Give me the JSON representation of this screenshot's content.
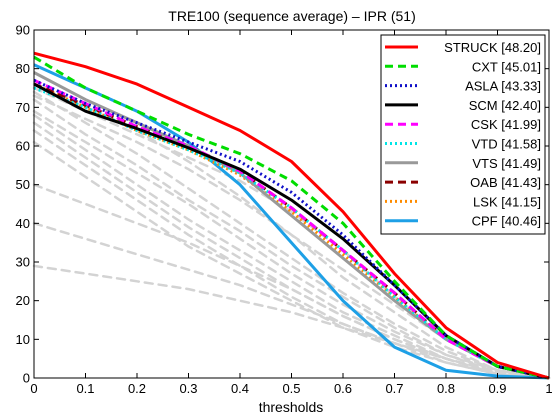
{
  "chart_data": {
    "type": "line",
    "title": "TRE100 (sequence average) – IPR (51)",
    "xlabel": "thresholds",
    "ylabel": "",
    "xlim": [
      0,
      1
    ],
    "ylim": [
      0,
      90
    ],
    "xticks": [
      "0",
      "0.1",
      "0.2",
      "0.3",
      "0.4",
      "0.5",
      "0.6",
      "0.7",
      "0.8",
      "0.9",
      "1"
    ],
    "yticks": [
      "0",
      "10",
      "20",
      "30",
      "40",
      "50",
      "60",
      "70",
      "80",
      "90"
    ],
    "legend_position": "top-right",
    "series": [
      {
        "name": "STRUCK",
        "score": "[48.20]",
        "color": "#ff0000",
        "style": "solid",
        "x": [
          0,
          0.1,
          0.2,
          0.3,
          0.4,
          0.5,
          0.6,
          0.7,
          0.8,
          0.9,
          1.0
        ],
        "y": [
          84,
          80.5,
          76,
          70,
          64,
          56,
          43,
          27,
          13,
          4,
          0
        ]
      },
      {
        "name": "CXT",
        "score": "[45.01]",
        "color": "#00dd00",
        "style": "dashed",
        "x": [
          0,
          0.1,
          0.2,
          0.3,
          0.4,
          0.5,
          0.6,
          0.7,
          0.8,
          0.9,
          1.0
        ],
        "y": [
          83,
          75,
          69,
          63,
          58,
          51,
          40,
          25,
          11,
          3,
          0
        ]
      },
      {
        "name": "ASLA",
        "score": "[43.33]",
        "color": "#1010c8",
        "style": "dotted",
        "x": [
          0,
          0.1,
          0.2,
          0.3,
          0.4,
          0.5,
          0.6,
          0.7,
          0.8,
          0.9,
          1.0
        ],
        "y": [
          77,
          71,
          66,
          61,
          56,
          48,
          37,
          24,
          11,
          3,
          0
        ]
      },
      {
        "name": "SCM",
        "score": "[42.40]",
        "color": "#000000",
        "style": "solid",
        "x": [
          0,
          0.1,
          0.2,
          0.3,
          0.4,
          0.5,
          0.6,
          0.7,
          0.8,
          0.9,
          1.0
        ],
        "y": [
          76,
          69,
          64.5,
          59.5,
          54,
          46,
          36,
          24,
          11,
          3,
          0
        ]
      },
      {
        "name": "CSK",
        "score": "[41.99]",
        "color": "#ff00ff",
        "style": "dashed",
        "x": [
          0,
          0.1,
          0.2,
          0.3,
          0.4,
          0.5,
          0.6,
          0.7,
          0.8,
          0.9,
          1.0
        ],
        "y": [
          77,
          71,
          65,
          60,
          53.5,
          44,
          33,
          22,
          10,
          3,
          0
        ]
      },
      {
        "name": "VTD",
        "score": "[41.58]",
        "color": "#00e6e6",
        "style": "dotted",
        "x": [
          0,
          0.1,
          0.2,
          0.3,
          0.4,
          0.5,
          0.6,
          0.7,
          0.8,
          0.9,
          1.0
        ],
        "y": [
          75,
          70,
          64,
          59,
          53,
          44,
          33,
          21,
          10,
          3,
          0
        ]
      },
      {
        "name": "VTS",
        "score": "[41.49]",
        "color": "#999999",
        "style": "solid",
        "x": [
          0,
          0.1,
          0.2,
          0.3,
          0.4,
          0.5,
          0.6,
          0.7,
          0.8,
          0.9,
          1.0
        ],
        "y": [
          79,
          72,
          66,
          60,
          53,
          42,
          31,
          20,
          10,
          3,
          0
        ]
      },
      {
        "name": "OAB",
        "score": "[41.43]",
        "color": "#8b0000",
        "style": "dashed",
        "x": [
          0,
          0.1,
          0.2,
          0.3,
          0.4,
          0.5,
          0.6,
          0.7,
          0.8,
          0.9,
          1.0
        ],
        "y": [
          76,
          70.5,
          65,
          60,
          53.5,
          44,
          33,
          22,
          10,
          3,
          0
        ]
      },
      {
        "name": "LSK",
        "score": "[41.15]",
        "color": "#ff8c00",
        "style": "dotted",
        "x": [
          0,
          0.1,
          0.2,
          0.3,
          0.4,
          0.5,
          0.6,
          0.7,
          0.8,
          0.9,
          1.0
        ],
        "y": [
          76,
          70,
          64,
          59,
          52.5,
          43,
          32,
          21,
          10,
          3,
          0
        ]
      },
      {
        "name": "CPF",
        "score": "[40.46]",
        "color": "#1ea0e6",
        "style": "solid",
        "x": [
          0,
          0.1,
          0.2,
          0.3,
          0.4,
          0.5,
          0.6,
          0.7,
          0.8,
          0.9,
          1.0
        ],
        "y": [
          81,
          75,
          69,
          61,
          50,
          35,
          20,
          8,
          2,
          0.5,
          0
        ]
      }
    ],
    "background_curves": [
      {
        "x": [
          0,
          0.1,
          0.2,
          0.3,
          0.4,
          0.5,
          0.6,
          0.7,
          0.8,
          0.9,
          1.0
        ],
        "y": [
          76,
          70,
          64,
          56,
          47,
          37,
          26,
          17,
          8,
          2,
          0
        ]
      },
      {
        "x": [
          0,
          0.1,
          0.2,
          0.3,
          0.4,
          0.5,
          0.6,
          0.7,
          0.8,
          0.9,
          1.0
        ],
        "y": [
          74,
          66,
          58,
          49,
          40,
          31,
          22,
          14,
          7,
          2,
          0
        ]
      },
      {
        "x": [
          0,
          0.1,
          0.2,
          0.3,
          0.4,
          0.5,
          0.6,
          0.7,
          0.8,
          0.9,
          1.0
        ],
        "y": [
          72,
          63,
          55,
          46,
          38,
          29,
          21,
          13,
          6,
          2,
          0
        ]
      },
      {
        "x": [
          0,
          0.1,
          0.2,
          0.3,
          0.4,
          0.5,
          0.6,
          0.7,
          0.8,
          0.9,
          1.0
        ],
        "y": [
          69,
          61,
          53,
          45,
          36,
          27,
          19,
          12,
          6,
          1.5,
          0
        ]
      },
      {
        "x": [
          0,
          0.1,
          0.2,
          0.3,
          0.4,
          0.5,
          0.6,
          0.7,
          0.8,
          0.9,
          1.0
        ],
        "y": [
          68,
          59,
          50,
          41,
          33,
          25,
          17,
          11,
          5,
          1.5,
          0
        ]
      },
      {
        "x": [
          0,
          0.1,
          0.2,
          0.3,
          0.4,
          0.5,
          0.6,
          0.7,
          0.8,
          0.9,
          1.0
        ],
        "y": [
          66,
          57,
          48,
          39,
          31,
          23,
          16,
          10,
          5,
          1,
          0
        ]
      },
      {
        "x": [
          0,
          0.1,
          0.2,
          0.3,
          0.4,
          0.5,
          0.6,
          0.7,
          0.8,
          0.9,
          1.0
        ],
        "y": [
          64,
          55,
          46,
          37,
          29,
          21,
          14,
          9,
          4,
          1,
          0
        ]
      },
      {
        "x": [
          0,
          0.1,
          0.2,
          0.3,
          0.4,
          0.5,
          0.6,
          0.7,
          0.8,
          0.9,
          1.0
        ],
        "y": [
          61,
          52,
          43,
          34,
          27,
          20,
          13,
          8,
          4,
          1,
          0
        ]
      },
      {
        "x": [
          0,
          0.1,
          0.2,
          0.3,
          0.4,
          0.5,
          0.6,
          0.7,
          0.8,
          0.9,
          1.0
        ],
        "y": [
          50,
          45,
          40,
          35,
          29,
          23,
          16,
          10,
          5,
          1,
          0
        ]
      },
      {
        "x": [
          0,
          0.1,
          0.2,
          0.3,
          0.4,
          0.5,
          0.6,
          0.7,
          0.8,
          0.9,
          1.0
        ],
        "y": [
          40,
          36,
          32,
          28,
          24,
          19,
          14,
          9,
          5,
          1,
          0
        ]
      },
      {
        "x": [
          0,
          0.1,
          0.2,
          0.3,
          0.4,
          0.5,
          0.6,
          0.7,
          0.8,
          0.9,
          1.0
        ],
        "y": [
          29,
          27,
          25,
          23,
          20,
          17,
          13,
          9,
          5,
          1.5,
          0
        ]
      },
      {
        "x": [
          0,
          0.1,
          0.2,
          0.3,
          0.4,
          0.5,
          0.6,
          0.7,
          0.8,
          0.9,
          1.0
        ],
        "y": [
          73,
          67,
          61,
          54,
          46,
          37,
          28,
          19,
          10,
          3,
          0
        ]
      },
      {
        "x": [
          0,
          0.1,
          0.2,
          0.3,
          0.4,
          0.5,
          0.6,
          0.7,
          0.8,
          0.9,
          1.0
        ],
        "y": [
          75,
          69,
          63,
          57,
          51,
          43,
          33,
          21,
          10,
          3,
          0
        ]
      }
    ]
  }
}
